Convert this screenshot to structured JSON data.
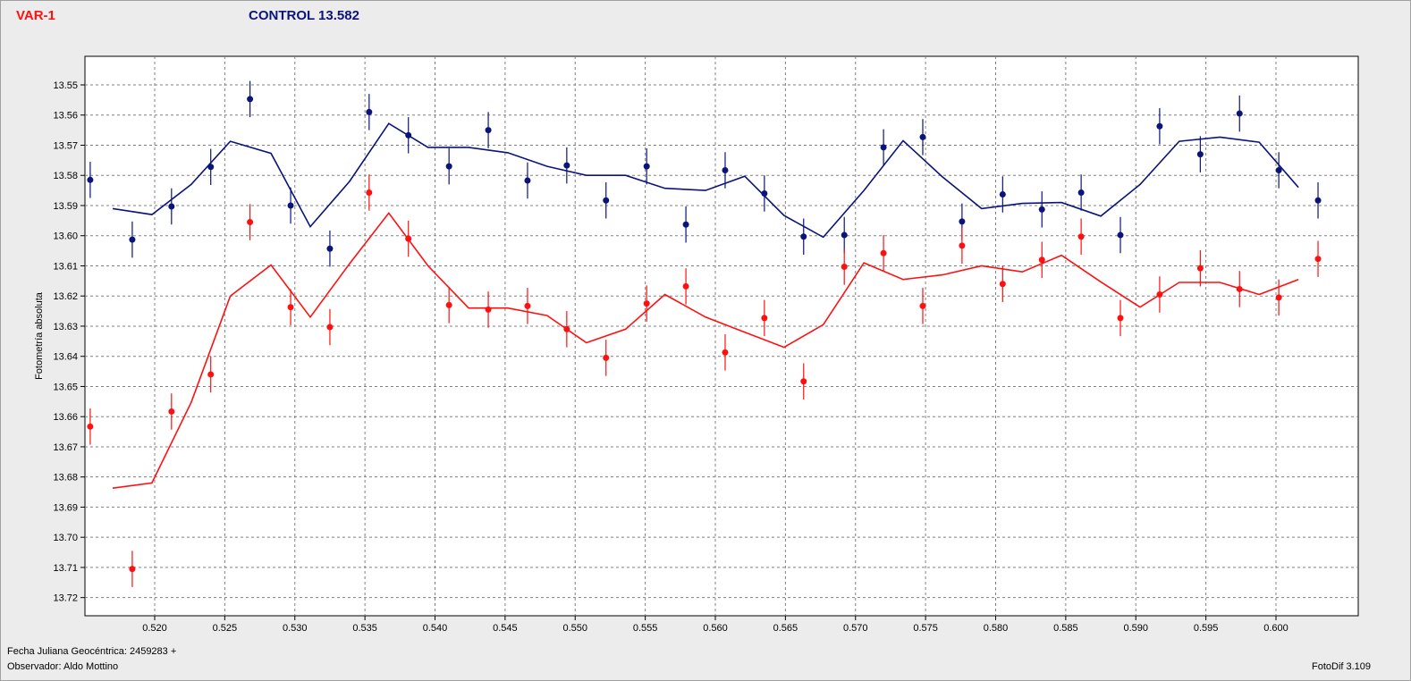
{
  "header": {
    "variable_label": "VAR-1",
    "control_label": "CONTROL 13.582"
  },
  "footer": {
    "jd_label": "Fecha Juliana Geocéntrica: 2459283 +",
    "observer_label": "Observador: Aldo Mottino",
    "software_label": "FotoDif 3.109"
  },
  "colors": {
    "variable": "#ff1010",
    "control": "#0a147a",
    "plot_bg": "#ffffff",
    "grid": "#808080"
  },
  "chart_data": {
    "type": "scatter",
    "ylabel": "Fotometría absoluta",
    "xlabel": "Fecha Juliana Geocéntrica: 2459283 +",
    "xlim": [
      0.5154,
      0.6032
    ],
    "ylim": [
      13.5435,
      13.7268
    ],
    "y_inverted": true,
    "grid": true,
    "x_ticks": [
      "0.520",
      "0.525",
      "0.530",
      "0.535",
      "0.540",
      "0.545",
      "0.550",
      "0.555",
      "0.560",
      "0.565",
      "0.570",
      "0.575",
      "0.580",
      "0.585",
      "0.590",
      "0.595",
      "0.600"
    ],
    "y_ticks": [
      "13.55",
      "13.56",
      "13.57",
      "13.58",
      "13.59",
      "13.60",
      "13.61",
      "13.62",
      "13.63",
      "13.64",
      "13.65",
      "13.66",
      "13.67",
      "13.68",
      "13.69",
      "13.70",
      "13.71",
      "13.72"
    ],
    "error_bar": 0.006,
    "series": [
      {
        "name": "CONTROL 13.582",
        "color": "#0a147a",
        "points": [
          {
            "x": 0.5154,
            "y": 13.5815
          },
          {
            "x": 0.5184,
            "y": 13.6013
          },
          {
            "x": 0.5212,
            "y": 13.5903
          },
          {
            "x": 0.524,
            "y": 13.5772
          },
          {
            "x": 0.5268,
            "y": 13.5547
          },
          {
            "x": 0.5297,
            "y": 13.59
          },
          {
            "x": 0.5325,
            "y": 13.6043
          },
          {
            "x": 0.5353,
            "y": 13.559
          },
          {
            "x": 0.5381,
            "y": 13.5667
          },
          {
            "x": 0.541,
            "y": 13.577
          },
          {
            "x": 0.5438,
            "y": 13.565
          },
          {
            "x": 0.5466,
            "y": 13.5817
          },
          {
            "x": 0.5494,
            "y": 13.5767
          },
          {
            "x": 0.5522,
            "y": 13.5883
          },
          {
            "x": 0.5551,
            "y": 13.577
          },
          {
            "x": 0.5579,
            "y": 13.5963
          },
          {
            "x": 0.5607,
            "y": 13.5783
          },
          {
            "x": 0.5635,
            "y": 13.586
          },
          {
            "x": 0.5663,
            "y": 13.6003
          },
          {
            "x": 0.5692,
            "y": 13.5998
          },
          {
            "x": 0.572,
            "y": 13.5707
          },
          {
            "x": 0.5748,
            "y": 13.5673
          },
          {
            "x": 0.5776,
            "y": 13.5953
          },
          {
            "x": 0.5805,
            "y": 13.5863
          },
          {
            "x": 0.5833,
            "y": 13.5913
          },
          {
            "x": 0.5861,
            "y": 13.5857
          },
          {
            "x": 0.5889,
            "y": 13.5998
          },
          {
            "x": 0.5917,
            "y": 13.5637
          },
          {
            "x": 0.5946,
            "y": 13.573
          },
          {
            "x": 0.5974,
            "y": 13.5595
          },
          {
            "x": 0.6002,
            "y": 13.5783
          },
          {
            "x": 0.603,
            "y": 13.5883
          }
        ],
        "fit": [
          {
            "x": 0.517,
            "y": 13.591
          },
          {
            "x": 0.5198,
            "y": 13.593
          },
          {
            "x": 0.5226,
            "y": 13.583
          },
          {
            "x": 0.5254,
            "y": 13.5687
          },
          {
            "x": 0.5283,
            "y": 13.5727
          },
          {
            "x": 0.5311,
            "y": 13.597
          },
          {
            "x": 0.5339,
            "y": 13.582
          },
          {
            "x": 0.5367,
            "y": 13.5628
          },
          {
            "x": 0.5395,
            "y": 13.5707
          },
          {
            "x": 0.5424,
            "y": 13.5707
          },
          {
            "x": 0.5452,
            "y": 13.5725
          },
          {
            "x": 0.548,
            "y": 13.577
          },
          {
            "x": 0.5508,
            "y": 13.58
          },
          {
            "x": 0.5536,
            "y": 13.58
          },
          {
            "x": 0.5564,
            "y": 13.5843
          },
          {
            "x": 0.5593,
            "y": 13.585
          },
          {
            "x": 0.5621,
            "y": 13.5803
          },
          {
            "x": 0.5649,
            "y": 13.5933
          },
          {
            "x": 0.5677,
            "y": 13.6005
          },
          {
            "x": 0.5706,
            "y": 13.585
          },
          {
            "x": 0.5734,
            "y": 13.5685
          },
          {
            "x": 0.5762,
            "y": 13.5805
          },
          {
            "x": 0.579,
            "y": 13.591
          },
          {
            "x": 0.5819,
            "y": 13.5893
          },
          {
            "x": 0.5847,
            "y": 13.589
          },
          {
            "x": 0.5875,
            "y": 13.5935
          },
          {
            "x": 0.5903,
            "y": 13.583
          },
          {
            "x": 0.5931,
            "y": 13.5687
          },
          {
            "x": 0.596,
            "y": 13.5673
          },
          {
            "x": 0.5988,
            "y": 13.569
          },
          {
            "x": 0.6016,
            "y": 13.584
          }
        ]
      },
      {
        "name": "VAR-1",
        "color": "#ff1010",
        "points": [
          {
            "x": 0.5154,
            "y": 13.6633
          },
          {
            "x": 0.5184,
            "y": 13.7105
          },
          {
            "x": 0.5212,
            "y": 13.6583
          },
          {
            "x": 0.524,
            "y": 13.646
          },
          {
            "x": 0.5268,
            "y": 13.5955
          },
          {
            "x": 0.5297,
            "y": 13.6237
          },
          {
            "x": 0.5325,
            "y": 13.6303
          },
          {
            "x": 0.5353,
            "y": 13.5857
          },
          {
            "x": 0.5381,
            "y": 13.601
          },
          {
            "x": 0.541,
            "y": 13.623
          },
          {
            "x": 0.5438,
            "y": 13.6245
          },
          {
            "x": 0.5466,
            "y": 13.6233
          },
          {
            "x": 0.5494,
            "y": 13.631
          },
          {
            "x": 0.5522,
            "y": 13.6405
          },
          {
            "x": 0.5551,
            "y": 13.6225
          },
          {
            "x": 0.5579,
            "y": 13.6168
          },
          {
            "x": 0.5607,
            "y": 13.6387
          },
          {
            "x": 0.5635,
            "y": 13.6273
          },
          {
            "x": 0.5663,
            "y": 13.6483
          },
          {
            "x": 0.5692,
            "y": 13.6103
          },
          {
            "x": 0.572,
            "y": 13.6058
          },
          {
            "x": 0.5748,
            "y": 13.6233
          },
          {
            "x": 0.5776,
            "y": 13.6033
          },
          {
            "x": 0.5805,
            "y": 13.616
          },
          {
            "x": 0.5833,
            "y": 13.608
          },
          {
            "x": 0.5861,
            "y": 13.6003
          },
          {
            "x": 0.5889,
            "y": 13.6273
          },
          {
            "x": 0.5917,
            "y": 13.6195
          },
          {
            "x": 0.5946,
            "y": 13.6108
          },
          {
            "x": 0.5974,
            "y": 13.6177
          },
          {
            "x": 0.6002,
            "y": 13.6205
          },
          {
            "x": 0.603,
            "y": 13.6077
          }
        ],
        "fit": [
          {
            "x": 0.517,
            "y": 13.6837
          },
          {
            "x": 0.5198,
            "y": 13.682
          },
          {
            "x": 0.5226,
            "y": 13.6553
          },
          {
            "x": 0.5254,
            "y": 13.62
          },
          {
            "x": 0.5283,
            "y": 13.6097
          },
          {
            "x": 0.5311,
            "y": 13.627
          },
          {
            "x": 0.5339,
            "y": 13.6093
          },
          {
            "x": 0.5367,
            "y": 13.5925
          },
          {
            "x": 0.5395,
            "y": 13.61
          },
          {
            "x": 0.5424,
            "y": 13.624
          },
          {
            "x": 0.5452,
            "y": 13.624
          },
          {
            "x": 0.548,
            "y": 13.6265
          },
          {
            "x": 0.5508,
            "y": 13.6355
          },
          {
            "x": 0.5536,
            "y": 13.631
          },
          {
            "x": 0.5564,
            "y": 13.6195
          },
          {
            "x": 0.5593,
            "y": 13.627
          },
          {
            "x": 0.5621,
            "y": 13.632
          },
          {
            "x": 0.5649,
            "y": 13.637
          },
          {
            "x": 0.5677,
            "y": 13.6295
          },
          {
            "x": 0.5706,
            "y": 13.609
          },
          {
            "x": 0.5734,
            "y": 13.6145
          },
          {
            "x": 0.5762,
            "y": 13.613
          },
          {
            "x": 0.579,
            "y": 13.61
          },
          {
            "x": 0.5819,
            "y": 13.612
          },
          {
            "x": 0.5847,
            "y": 13.6065
          },
          {
            "x": 0.5875,
            "y": 13.6153
          },
          {
            "x": 0.5903,
            "y": 13.6237
          },
          {
            "x": 0.5931,
            "y": 13.6155
          },
          {
            "x": 0.596,
            "y": 13.6155
          },
          {
            "x": 0.5988,
            "y": 13.6195
          },
          {
            "x": 0.6016,
            "y": 13.6145
          }
        ]
      }
    ]
  }
}
